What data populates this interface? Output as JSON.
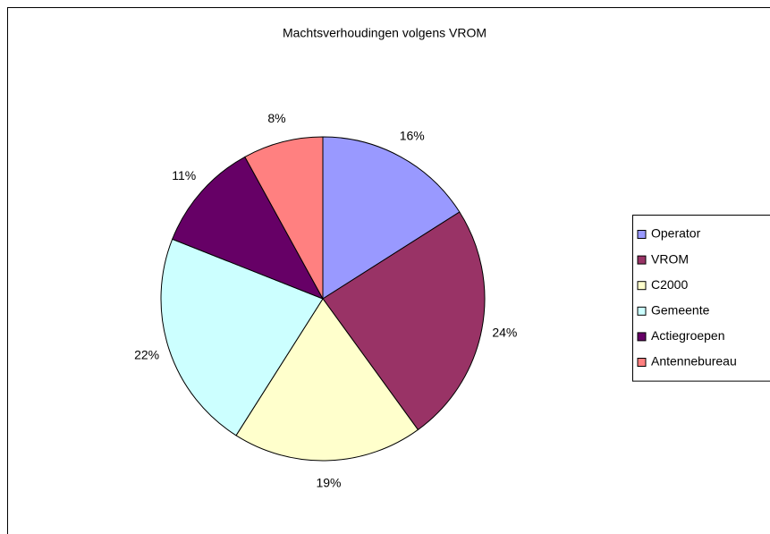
{
  "chart_data": {
    "type": "pie",
    "title": "Machtsverhoudingen volgens VROM",
    "categories": [
      "Operator",
      "VROM",
      "C2000",
      "Gemeente",
      "Actiegroepen",
      "Antennebureau"
    ],
    "values": [
      16,
      24,
      19,
      22,
      11,
      8
    ],
    "value_labels": [
      "16%",
      "24%",
      "19%",
      "22%",
      "11%",
      "8%"
    ],
    "colors": [
      "#9999ff",
      "#993366",
      "#ffffcc",
      "#ccffff",
      "#660066",
      "#ff8080"
    ],
    "legend": "right"
  }
}
